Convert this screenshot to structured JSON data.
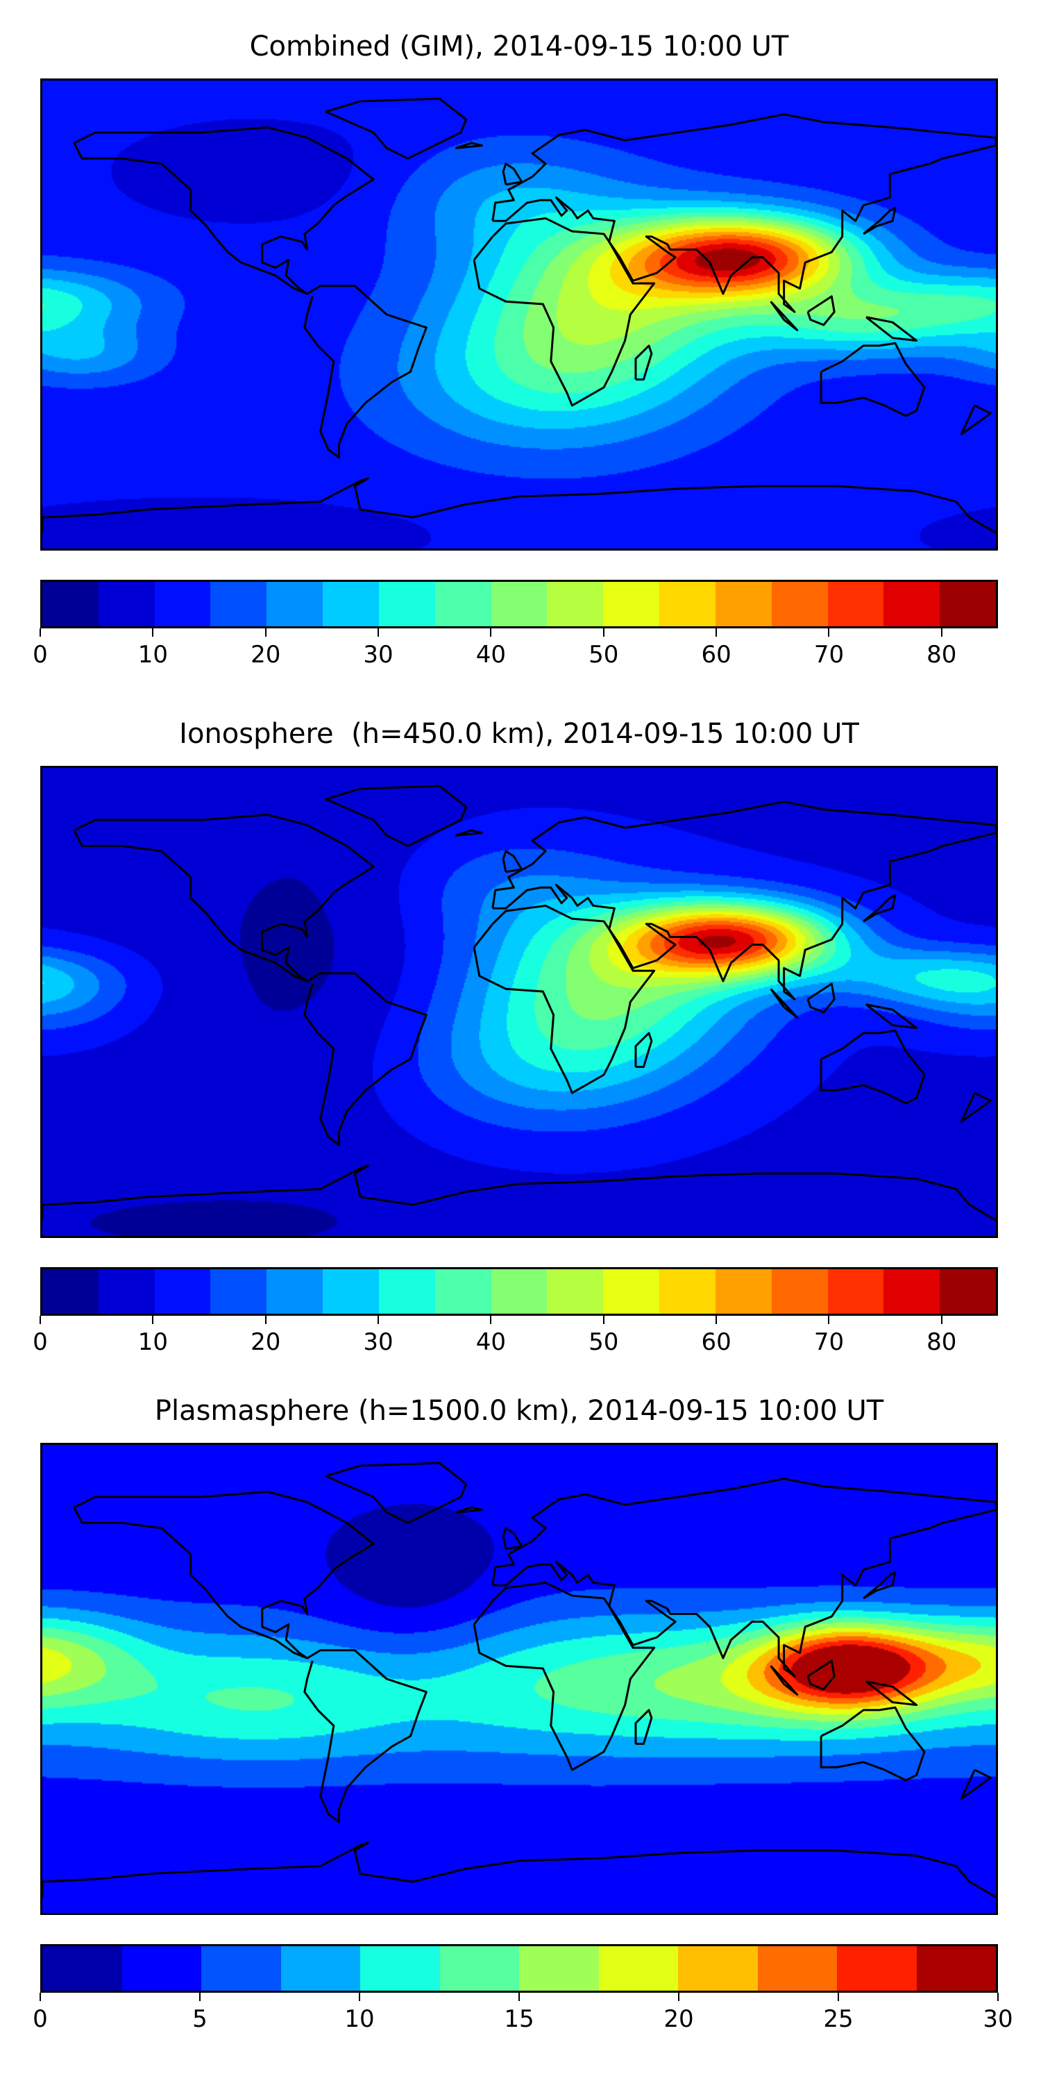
{
  "chart_data": [
    {
      "type": "heatmap",
      "title": "Combined (GIM), 2014-09-15 10:00 UT",
      "projection": "equirectangular",
      "xlim": [
        -180,
        180
      ],
      "ylim": [
        -90,
        90
      ],
      "levels_step": 5,
      "vmin": 0,
      "vmax": 85,
      "colorbar_ticks": [
        "0",
        "10",
        "20",
        "30",
        "40",
        "50",
        "60",
        "70",
        "80"
      ],
      "colorbar_tick_values": [
        0,
        10,
        20,
        30,
        40,
        50,
        60,
        70,
        80
      ],
      "colors": [
        "#000096",
        "#0000d4",
        "#0010ff",
        "#0050ff",
        "#0090ff",
        "#00ccff",
        "#18ffdf",
        "#4cffaa",
        "#85ff72",
        "#b6ff40",
        "#e6ff12",
        "#ffd800",
        "#ffa000",
        "#ff6800",
        "#ff3000",
        "#e00000",
        "#9c0000"
      ],
      "field": "combined",
      "peak": {
        "lon": 85,
        "lat": 23,
        "value": 82
      }
    },
    {
      "type": "heatmap",
      "title": "Ionosphere  (h=450.0 km), 2014-09-15 10:00 UT",
      "projection": "equirectangular",
      "xlim": [
        -180,
        180
      ],
      "ylim": [
        -90,
        90
      ],
      "levels_step": 5,
      "vmin": 0,
      "vmax": 85,
      "colorbar_ticks": [
        "0",
        "10",
        "20",
        "30",
        "40",
        "50",
        "60",
        "70",
        "80"
      ],
      "colorbar_tick_values": [
        0,
        10,
        20,
        30,
        40,
        50,
        60,
        70,
        80
      ],
      "colors": [
        "#000096",
        "#0000d4",
        "#0010ff",
        "#0050ff",
        "#0090ff",
        "#00ccff",
        "#18ffdf",
        "#4cffaa",
        "#85ff72",
        "#b6ff40",
        "#e6ff12",
        "#ffd800",
        "#ffa000",
        "#ff6800",
        "#ff3000",
        "#e00000",
        "#9c0000"
      ],
      "field": "ionosphere",
      "peak": {
        "lon": 85,
        "lat": 25,
        "value": 72
      }
    },
    {
      "type": "heatmap",
      "title": "Plasmasphere (h=1500.0 km), 2014-09-15 10:00 UT",
      "projection": "equirectangular",
      "xlim": [
        -180,
        180
      ],
      "ylim": [
        -90,
        90
      ],
      "levels_step": 2.5,
      "vmin": 0,
      "vmax": 30,
      "colorbar_ticks": [
        "0",
        "5",
        "10",
        "15",
        "20",
        "25",
        "30"
      ],
      "colorbar_tick_values": [
        0,
        5,
        10,
        15,
        20,
        25,
        30
      ],
      "colors": [
        "#0000aa",
        "#0000ff",
        "#0055ff",
        "#00aaff",
        "#16ffe1",
        "#58ff9e",
        "#a0ff56",
        "#e2ff16",
        "#ffbf00",
        "#ff6c00",
        "#ff2000",
        "#aa0000"
      ],
      "field": "plasmasphere",
      "peak": {
        "lon": 125,
        "lat": 5,
        "value": 27
      }
    }
  ]
}
